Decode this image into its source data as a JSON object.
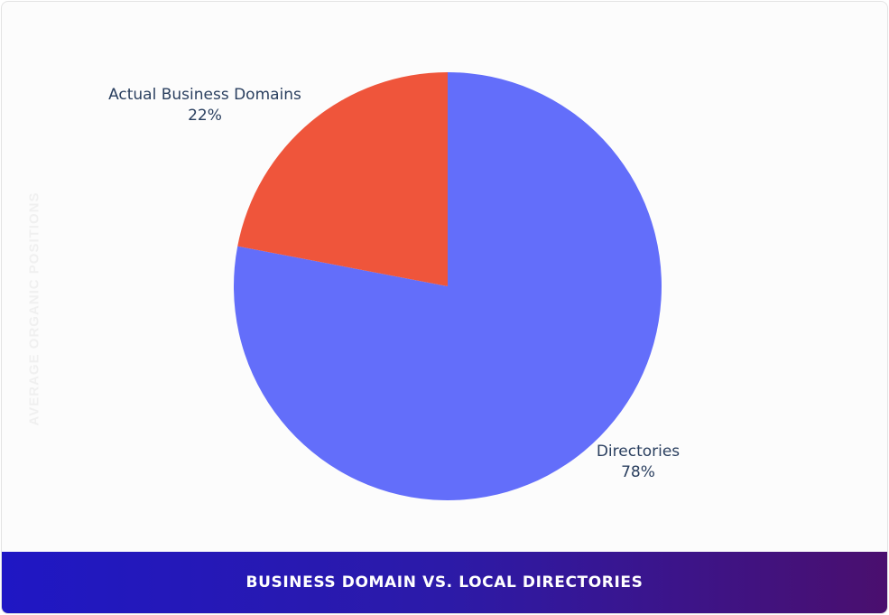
{
  "chart_data": {
    "type": "pie",
    "title": "BUSINESS DOMAIN VS. LOCAL DIRECTORIES",
    "ylabel": "AVERAGE ORGANIC POSITIONS",
    "slices": [
      {
        "label": "Directories",
        "value": 78,
        "value_label": "78%",
        "color": "#636efa"
      },
      {
        "label": "Actual Business Domains",
        "value": 22,
        "value_label": "22%",
        "color": "#ef553b"
      }
    ],
    "start_angle_deg": 0,
    "direction": "clockwise"
  }
}
